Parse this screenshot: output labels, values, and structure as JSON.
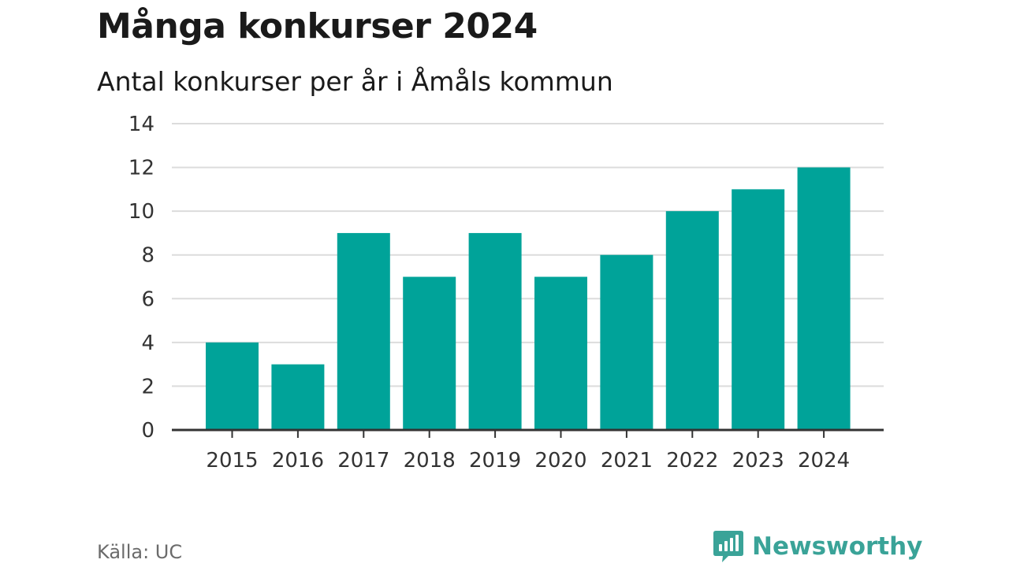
{
  "title": "Många konkurser 2024",
  "subtitle": "Antal konkurser per år i Åmåls kommun",
  "source": "Källa: UC",
  "brand": {
    "name": "Newsworthy",
    "icon": "newsworthy-chart-bubble-icon"
  },
  "colors": {
    "bar": "#00a399",
    "grid": "#dcdcdc",
    "axis": "#333333",
    "brand": "#3aa398"
  },
  "chart_data": {
    "type": "bar",
    "categories": [
      "2015",
      "2016",
      "2017",
      "2018",
      "2019",
      "2020",
      "2021",
      "2022",
      "2023",
      "2024"
    ],
    "values": [
      4,
      3,
      9,
      7,
      9,
      7,
      8,
      10,
      11,
      12
    ],
    "title": "Många konkurser 2024",
    "subtitle": "Antal konkurser per år i Åmåls kommun",
    "xlabel": "",
    "ylabel": "",
    "ylim": [
      0,
      14
    ],
    "yticks": [
      0,
      2,
      4,
      6,
      8,
      10,
      12,
      14
    ],
    "grid": true,
    "legend": "none"
  }
}
